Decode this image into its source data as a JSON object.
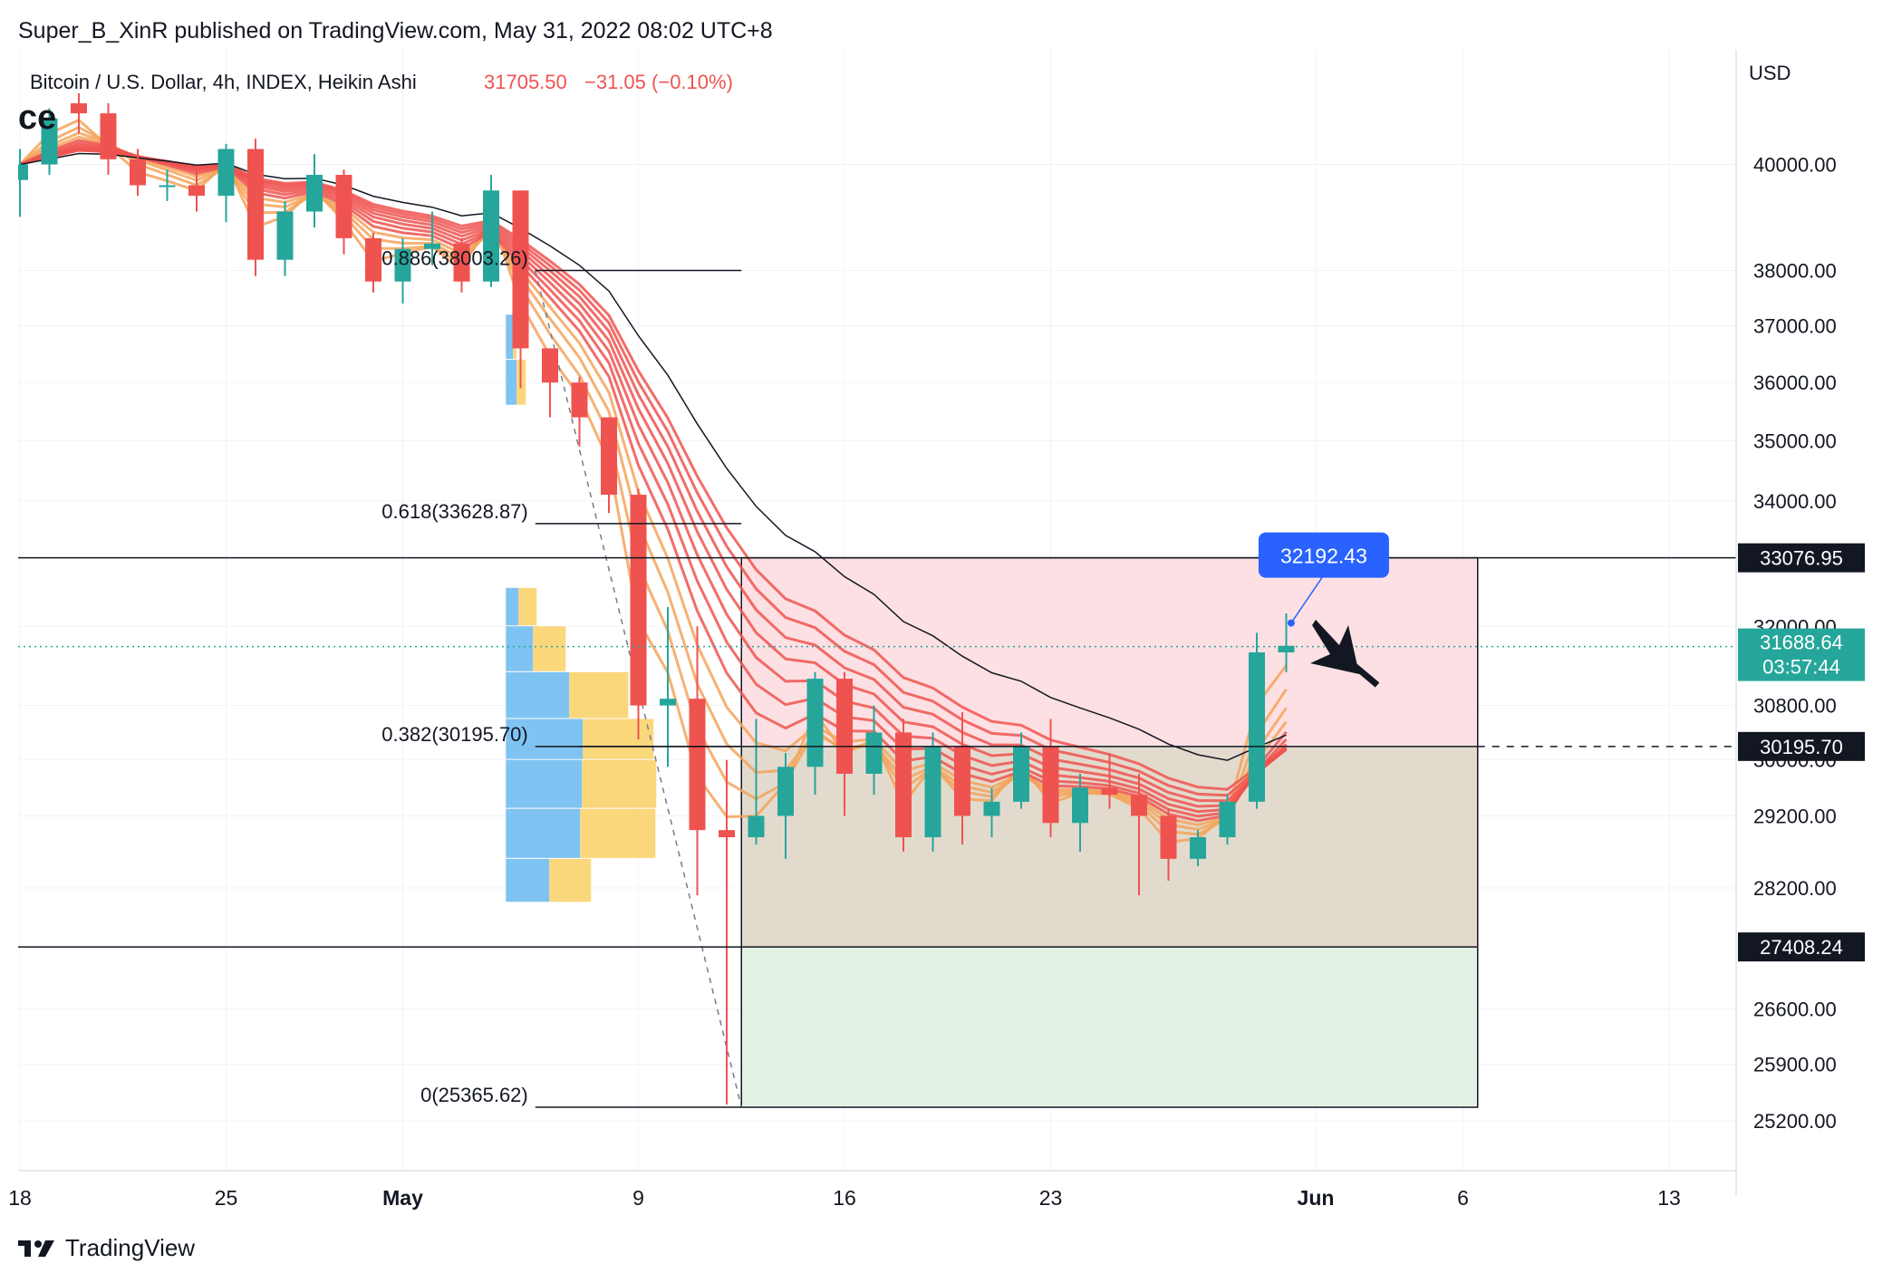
{
  "header": {
    "publish_line": "Super_B_XinR published on TradingView.com, May 31, 2022 08:02 UTC+8"
  },
  "legend": {
    "symbol": "Bitcoin / U.S. Dollar, 4h, INDEX, Heikin Ashi",
    "price": "31705.50",
    "change": "−31.05 (−0.10%)",
    "fragment": "ce"
  },
  "footer": {
    "brand": "TradingView"
  },
  "colors": {
    "up": "#26a69a",
    "down": "#ef5350",
    "ribbon": "#ef5350",
    "ribbon_light": "#f5a35a",
    "profit_zone": "#fde0e3",
    "loss_zone": "#e4f2e5",
    "neutral_zone": "#e3dace",
    "vp_blue": "#7fc3f2",
    "vp_yellow": "#fbd77c",
    "badge_blue": "#2962ff",
    "badge_green": "#26a69a"
  },
  "chart_data": {
    "type": "candlestick",
    "price_axis_unit": "USD",
    "price_scale": "log",
    "x_tick_labels": [
      {
        "label": "18",
        "date": "2022-04-18"
      },
      {
        "label": "25",
        "date": "2022-04-25"
      },
      {
        "label": "May",
        "date": "2022-05-01"
      },
      {
        "label": "9",
        "date": "2022-05-09"
      },
      {
        "label": "16",
        "date": "2022-05-16"
      },
      {
        "label": "23",
        "date": "2022-05-23"
      },
      {
        "label": "Jun",
        "date": "2022-06-01"
      },
      {
        "label": "6",
        "date": "2022-06-06"
      },
      {
        "label": "13",
        "date": "2022-06-13"
      }
    ],
    "y_tick_labels": [
      "40000.00",
      "38000.00",
      "37000.00",
      "36000.00",
      "35000.00",
      "34000.00",
      "32000.00",
      "30800.00",
      "30000.00",
      "29200.00",
      "28200.00",
      "26600.00",
      "25900.00",
      "25200.00"
    ],
    "y_tick_values": [
      40000,
      38000,
      37000,
      36000,
      35000,
      34000,
      32000,
      30800,
      30000,
      29200,
      28200,
      26600,
      25900,
      25200
    ],
    "fib_levels": [
      {
        "label": "0.886(38003.26)",
        "value": 38003.26
      },
      {
        "label": "0.618(33628.87)",
        "value": 33628.87
      },
      {
        "label": "0.382(30195.70)",
        "value": 30195.7
      },
      {
        "label": "0(25365.62)",
        "value": 25365.62
      }
    ],
    "price_badges": [
      {
        "label": "33076.95",
        "value": 33076.95,
        "style": "dark"
      },
      {
        "label": "30195.70",
        "value": 30195.7,
        "style": "dark"
      },
      {
        "label": "27408.24",
        "value": 27408.24,
        "style": "dark"
      }
    ],
    "current_price": {
      "label": "31688.64",
      "countdown": "03:57:44",
      "value": 31688.64
    },
    "callout": {
      "label": "32192.43",
      "value": 32192.43,
      "date": "2022-05-31T04:00"
    },
    "position_box": {
      "start": "2022-05-12T12:00",
      "end": "2022-06-06T12:00",
      "entry": 30195.7,
      "target": 33076.95,
      "stop": 27408.24,
      "low": 25365.62
    },
    "candles_ohlc_daily_approx": [
      [
        "2022-04-18",
        39700,
        40300,
        39000,
        40000
      ],
      [
        "2022-04-19",
        40000,
        41100,
        39800,
        40900
      ],
      [
        "2022-04-20",
        41200,
        41400,
        40600,
        41000
      ],
      [
        "2022-04-21",
        41000,
        41200,
        39800,
        40100
      ],
      [
        "2022-04-22",
        40100,
        40300,
        39400,
        39600
      ],
      [
        "2022-04-23",
        39600,
        39900,
        39300,
        39600
      ],
      [
        "2022-04-24",
        39600,
        39900,
        39100,
        39400
      ],
      [
        "2022-04-25",
        39400,
        40400,
        38900,
        40300
      ],
      [
        "2022-04-26",
        40300,
        40500,
        37900,
        38200
      ],
      [
        "2022-04-27",
        38200,
        39300,
        37900,
        39100
      ],
      [
        "2022-04-28",
        39100,
        40200,
        38800,
        39800
      ],
      [
        "2022-04-29",
        39800,
        39900,
        38300,
        38600
      ],
      [
        "2022-04-30",
        38600,
        38700,
        37600,
        37800
      ],
      [
        "2022-05-01",
        37800,
        38600,
        37400,
        38400
      ],
      [
        "2022-05-02",
        38400,
        39100,
        38100,
        38500
      ],
      [
        "2022-05-03",
        38500,
        38600,
        37600,
        37800
      ],
      [
        "2022-05-04",
        37800,
        39800,
        37700,
        39500
      ],
      [
        "2022-05-05",
        39500,
        39500,
        35900,
        36600
      ],
      [
        "2022-05-06",
        36600,
        36600,
        35400,
        36000
      ],
      [
        "2022-05-07",
        36000,
        36100,
        34900,
        35400
      ],
      [
        "2022-05-08",
        35400,
        35400,
        33800,
        34100
      ],
      [
        "2022-05-09",
        34100,
        34200,
        30300,
        30800
      ],
      [
        "2022-05-10",
        30800,
        32300,
        29900,
        30900
      ],
      [
        "2022-05-11",
        30900,
        32000,
        28100,
        29000
      ],
      [
        "2022-05-12",
        29000,
        30000,
        25400,
        28900
      ],
      [
        "2022-05-13",
        28900,
        30600,
        28800,
        29200
      ],
      [
        "2022-05-14",
        29200,
        30100,
        28600,
        29900
      ],
      [
        "2022-05-15",
        29900,
        31300,
        29500,
        31200
      ],
      [
        "2022-05-16",
        31200,
        31300,
        29200,
        29800
      ],
      [
        "2022-05-17",
        29800,
        30800,
        29500,
        30400
      ],
      [
        "2022-05-18",
        30400,
        30600,
        28700,
        28900
      ],
      [
        "2022-05-19",
        28900,
        30400,
        28700,
        30200
      ],
      [
        "2022-05-20",
        30200,
        30700,
        28800,
        29200
      ],
      [
        "2022-05-21",
        29200,
        29600,
        28900,
        29400
      ],
      [
        "2022-05-22",
        29400,
        30400,
        29300,
        30200
      ],
      [
        "2022-05-23",
        30200,
        30600,
        28900,
        29100
      ],
      [
        "2022-05-24",
        29100,
        29800,
        28700,
        29600
      ],
      [
        "2022-05-25",
        29600,
        30100,
        29300,
        29500
      ],
      [
        "2022-05-26",
        29500,
        29800,
        28100,
        29200
      ],
      [
        "2022-05-27",
        29200,
        29300,
        28300,
        28600
      ],
      [
        "2022-05-28",
        28600,
        29000,
        28500,
        28900
      ],
      [
        "2022-05-29",
        28900,
        29500,
        28800,
        29400
      ],
      [
        "2022-05-30",
        29400,
        31900,
        29300,
        31600
      ],
      [
        "2022-05-31",
        31600,
        32200,
        31300,
        31700
      ]
    ],
    "volume_profile_bins": [
      {
        "low": 28000,
        "high": 28600,
        "blue": 48,
        "yellow": 46
      },
      {
        "low": 28600,
        "high": 29300,
        "blue": 82,
        "yellow": 83
      },
      {
        "low": 29300,
        "high": 30000,
        "blue": 84,
        "yellow": 82
      },
      {
        "low": 30000,
        "high": 30600,
        "blue": 85,
        "yellow": 78
      },
      {
        "low": 30600,
        "high": 31300,
        "blue": 70,
        "yellow": 65
      },
      {
        "low": 31300,
        "high": 32000,
        "blue": 30,
        "yellow": 36
      },
      {
        "low": 32000,
        "high": 32600,
        "blue": 14,
        "yellow": 20
      },
      {
        "low": 35600,
        "high": 36400,
        "blue": 12,
        "yellow": 10
      },
      {
        "low": 36400,
        "high": 37200,
        "blue": 8,
        "yellow": 4
      }
    ]
  }
}
